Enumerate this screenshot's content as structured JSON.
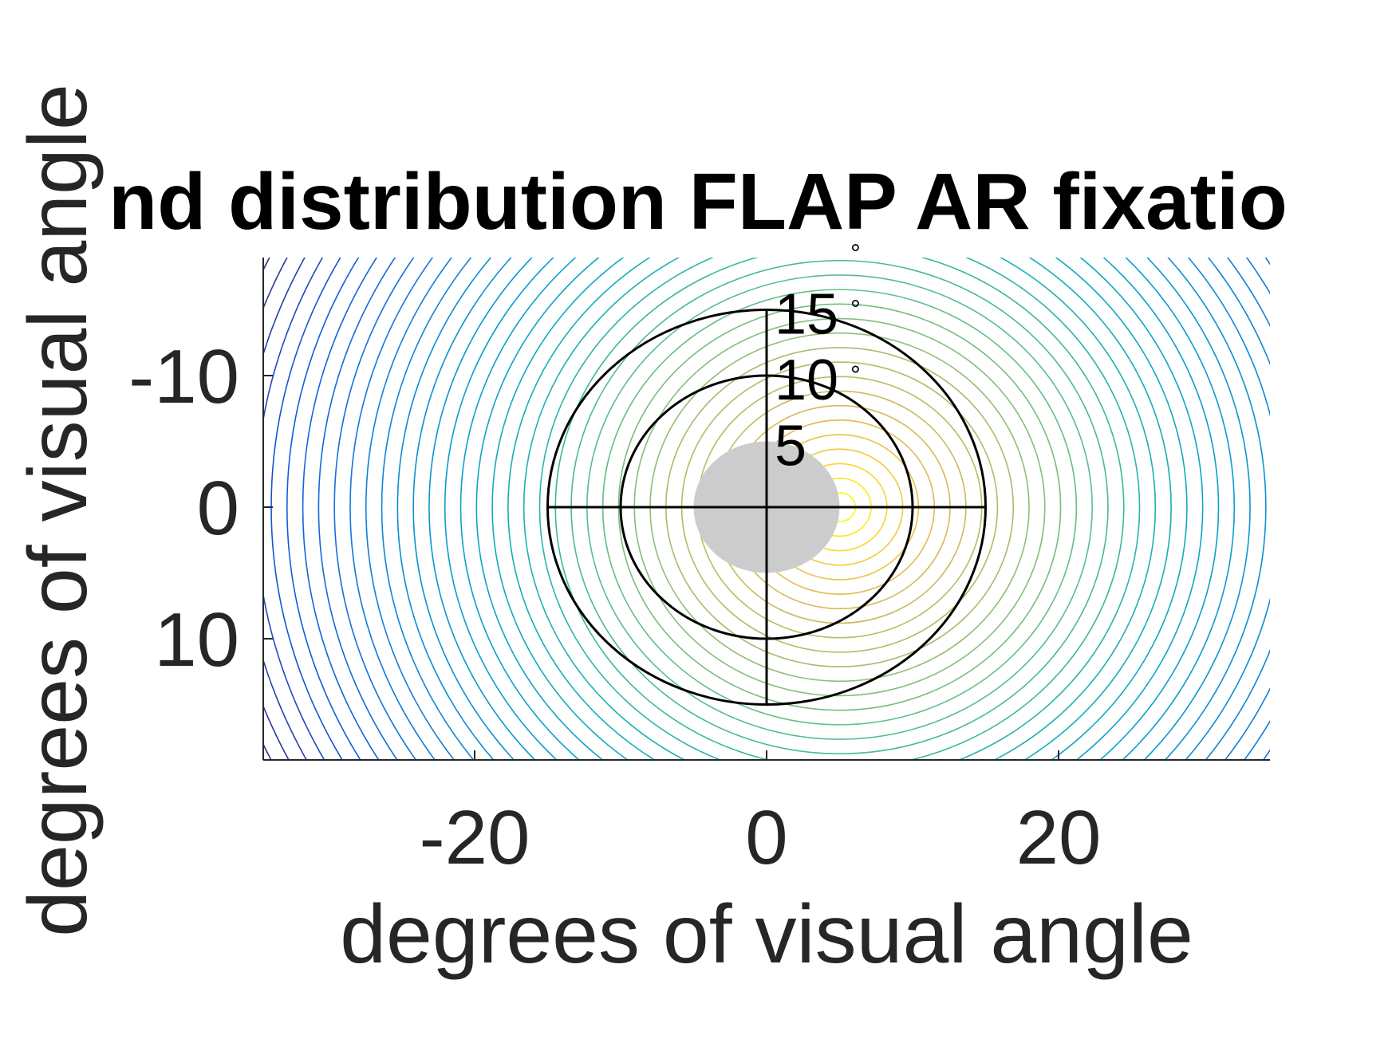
{
  "chart_data": {
    "type": "contour",
    "title": "nd distribution FLAP AR fixatio",
    "xlabel": "degrees of visual angle",
    "ylabel": "degrees of visual angle",
    "xlim": [
      -34.5,
      34.5
    ],
    "ylim": [
      -18.5,
      19.5
    ],
    "y_direction": "reversed",
    "x_ticks": [
      -20,
      0,
      20
    ],
    "x_tick_labels": [
      "-20",
      "0",
      "20"
    ],
    "y_ticks": [
      -10,
      0,
      10
    ],
    "y_tick_labels": [
      "-10",
      "0",
      "10"
    ],
    "grid": false,
    "colormap": "parula",
    "contour_levels": 40,
    "distribution_peak": {
      "x": 5,
      "y": 0
    },
    "masked_area": {
      "center": [
        0,
        0
      ],
      "radius": 5,
      "color": "#cccccc"
    },
    "polar_rings": [
      {
        "radius": 5,
        "label": "5",
        "degree_symbol": ""
      },
      {
        "radius": 10,
        "label": "10",
        "degree_symbol": "°"
      },
      {
        "radius": 15,
        "label": "15",
        "degree_symbol": "°"
      }
    ],
    "degree_marks": [
      "°",
      "°",
      "°"
    ]
  }
}
